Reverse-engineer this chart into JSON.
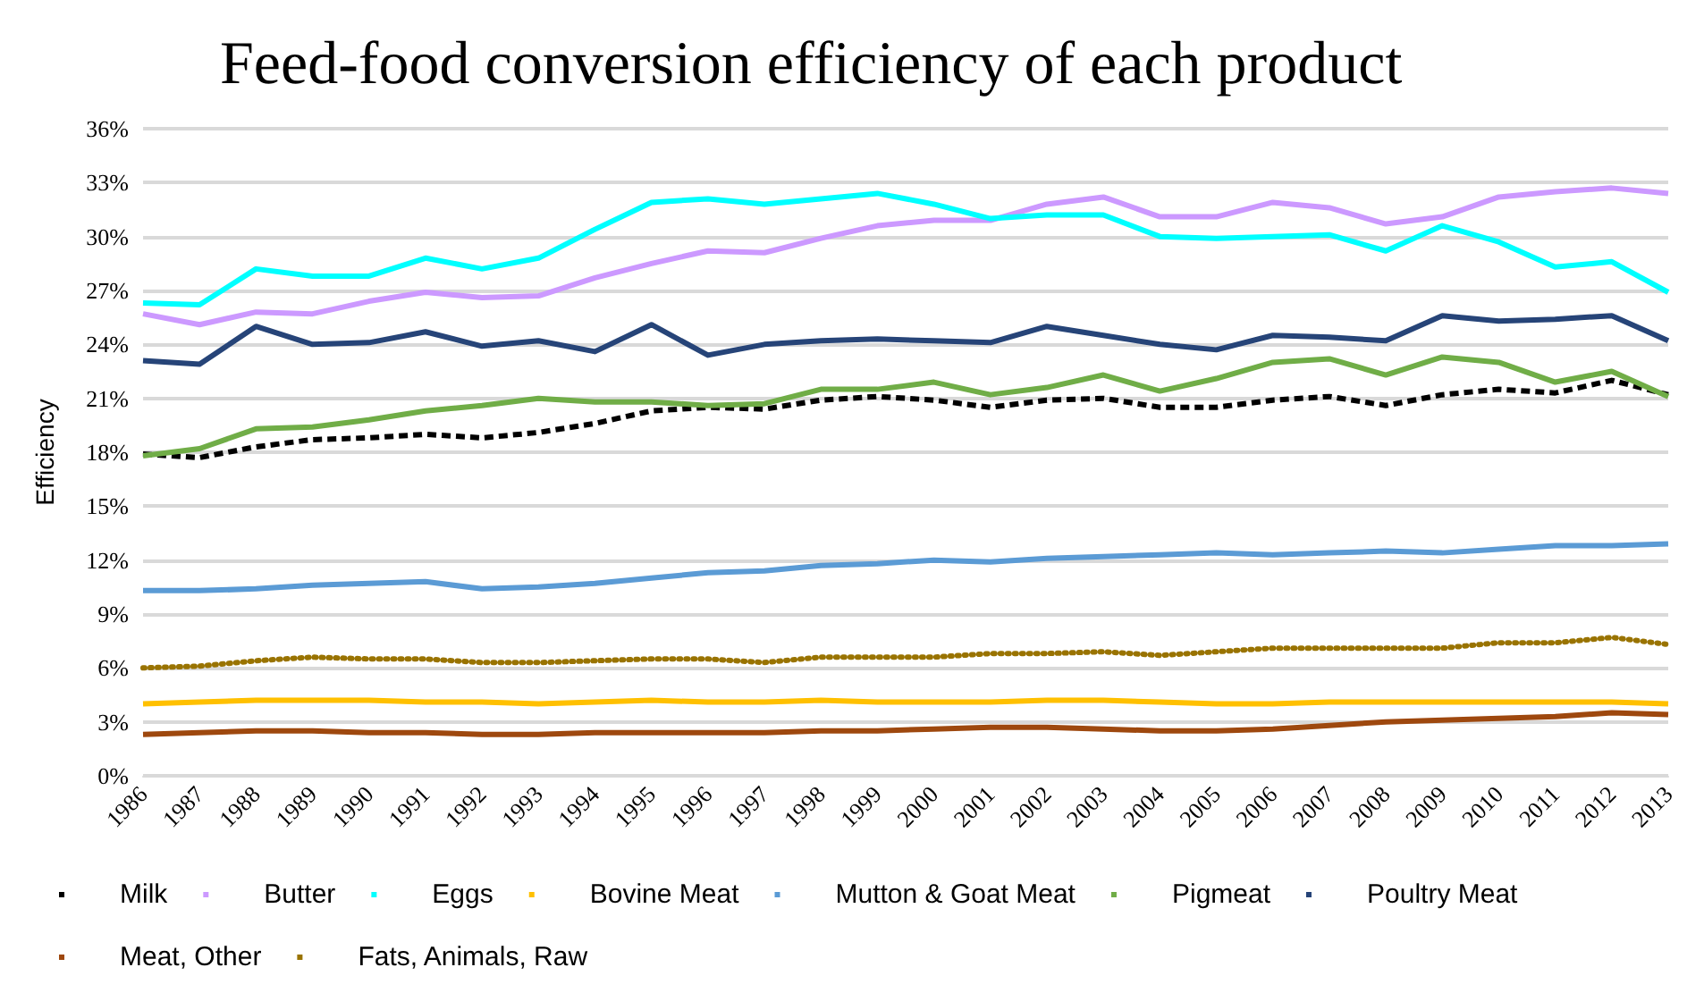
{
  "chart_data": {
    "type": "line",
    "title": "Feed-food conversion efficiency of each product",
    "ylabel": "Efficiency",
    "categories": [
      "1986",
      "1987",
      "1988",
      "1989",
      "1990",
      "1991",
      "1992",
      "1993",
      "1994",
      "1995",
      "1996",
      "1997",
      "1998",
      "1999",
      "2000",
      "2001",
      "2002",
      "2003",
      "2004",
      "2005",
      "2006",
      "2007",
      "2008",
      "2009",
      "2010",
      "2011",
      "2012",
      "2013"
    ],
    "ylim": [
      0,
      36
    ],
    "yticks": [
      {
        "value": 0,
        "label": "0%"
      },
      {
        "value": 3,
        "label": "3%"
      },
      {
        "value": 6,
        "label": "6%"
      },
      {
        "value": 9,
        "label": "9%"
      },
      {
        "value": 12,
        "label": "12%"
      },
      {
        "value": 15,
        "label": "15%"
      },
      {
        "value": 18,
        "label": "18%"
      },
      {
        "value": 21,
        "label": "21%"
      },
      {
        "value": 24,
        "label": "24%"
      },
      {
        "value": 27,
        "label": "27%"
      },
      {
        "value": 30,
        "label": "30%"
      },
      {
        "value": 33,
        "label": "33%"
      },
      {
        "value": 36,
        "label": "36%"
      }
    ],
    "grid": "y",
    "legend": "bottom",
    "marker": "none",
    "series": [
      {
        "name": "Milk",
        "color": "#000000",
        "line_style": "dashed",
        "values": [
          17.9,
          17.7,
          18.3,
          18.7,
          18.8,
          19.0,
          18.8,
          19.1,
          19.6,
          20.3,
          20.5,
          20.4,
          20.9,
          21.1,
          20.9,
          20.5,
          20.9,
          21.0,
          20.5,
          20.5,
          20.9,
          21.1,
          20.6,
          21.2,
          21.5,
          21.3,
          22.0,
          21.2
        ]
      },
      {
        "name": "Butter",
        "color": "#cc99ff",
        "values": [
          25.7,
          25.1,
          25.8,
          25.7,
          26.4,
          26.9,
          26.6,
          26.7,
          27.7,
          28.5,
          29.2,
          29.1,
          29.9,
          30.6,
          30.9,
          30.9,
          31.8,
          32.2,
          31.1,
          31.1,
          31.9,
          31.6,
          30.7,
          31.1,
          32.2,
          32.5,
          32.7,
          32.4
        ]
      },
      {
        "name": "Eggs",
        "color": "#00ffff",
        "values": [
          26.3,
          26.2,
          28.2,
          27.8,
          27.8,
          28.8,
          28.2,
          28.8,
          30.4,
          31.9,
          32.1,
          31.8,
          32.1,
          32.4,
          31.8,
          31.0,
          31.2,
          31.2,
          30.0,
          29.9,
          30.0,
          30.1,
          29.2,
          30.6,
          29.7,
          28.3,
          28.6,
          26.9
        ]
      },
      {
        "name": "Bovine Meat",
        "color": "#ffc000",
        "values": [
          4.0,
          4.1,
          4.2,
          4.2,
          4.2,
          4.1,
          4.1,
          4.0,
          4.1,
          4.2,
          4.1,
          4.1,
          4.2,
          4.1,
          4.1,
          4.1,
          4.2,
          4.2,
          4.1,
          4.0,
          4.0,
          4.1,
          4.1,
          4.1,
          4.1,
          4.1,
          4.1,
          4.0
        ]
      },
      {
        "name": "Mutton & Goat Meat",
        "color": "#5b9bd5",
        "values": [
          10.3,
          10.3,
          10.4,
          10.6,
          10.7,
          10.8,
          10.4,
          10.5,
          10.7,
          11.0,
          11.3,
          11.4,
          11.7,
          11.8,
          12.0,
          11.9,
          12.1,
          12.2,
          12.3,
          12.4,
          12.3,
          12.4,
          12.5,
          12.4,
          12.6,
          12.8,
          12.8,
          12.9
        ]
      },
      {
        "name": "Pigmeat",
        "color": "#70ad47",
        "values": [
          17.8,
          18.2,
          19.3,
          19.4,
          19.8,
          20.3,
          20.6,
          21.0,
          20.8,
          20.8,
          20.6,
          20.7,
          21.5,
          21.5,
          21.9,
          21.2,
          21.6,
          22.3,
          21.4,
          22.1,
          23.0,
          23.2,
          22.3,
          23.3,
          23.0,
          21.9,
          22.5,
          21.1
        ]
      },
      {
        "name": "Poultry Meat",
        "color": "#264478",
        "values": [
          23.1,
          22.9,
          25.0,
          24.0,
          24.1,
          24.7,
          23.9,
          24.2,
          23.6,
          25.1,
          23.4,
          24.0,
          24.2,
          24.3,
          24.2,
          24.1,
          25.0,
          24.5,
          24.0,
          23.7,
          24.5,
          24.4,
          24.2,
          25.6,
          25.3,
          25.4,
          25.6,
          24.2
        ]
      },
      {
        "name": "Meat, Other",
        "color": "#9e480e",
        "values": [
          2.3,
          2.4,
          2.5,
          2.5,
          2.4,
          2.4,
          2.3,
          2.3,
          2.4,
          2.4,
          2.4,
          2.4,
          2.5,
          2.5,
          2.6,
          2.7,
          2.7,
          2.6,
          2.5,
          2.5,
          2.6,
          2.8,
          3.0,
          3.1,
          3.2,
          3.3,
          3.5,
          3.4
        ]
      },
      {
        "name": "Fats, Animals, Raw",
        "color": "#997300",
        "line_style": "dotted",
        "values": [
          6.0,
          6.1,
          6.4,
          6.6,
          6.5,
          6.5,
          6.3,
          6.3,
          6.4,
          6.5,
          6.5,
          6.3,
          6.6,
          6.6,
          6.6,
          6.8,
          6.8,
          6.9,
          6.7,
          6.9,
          7.1,
          7.1,
          7.1,
          7.1,
          7.4,
          7.4,
          7.7,
          7.3
        ]
      }
    ]
  }
}
